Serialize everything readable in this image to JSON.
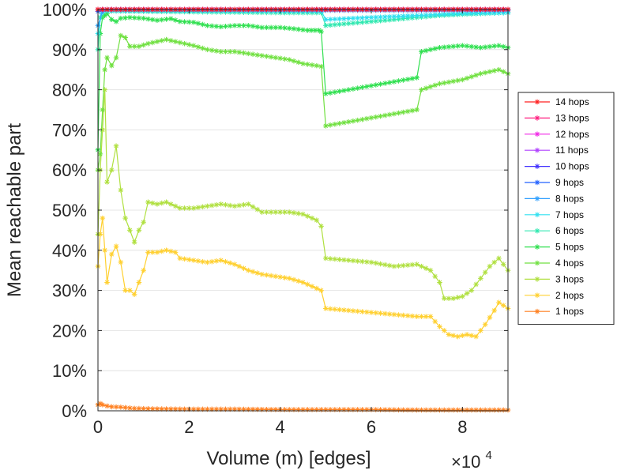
{
  "chart_data": {
    "type": "line",
    "xlabel": "Volume (m) [edges]",
    "ylabel": "Mean reachable part",
    "x_multiplier_label": "×10",
    "x_multiplier_exponent": "4",
    "xlim": [
      0,
      90000
    ],
    "ylim": [
      0,
      100
    ],
    "xticks": [
      0,
      20000,
      40000,
      60000,
      80000
    ],
    "xtick_labels": [
      "0",
      "2",
      "4",
      "6",
      "8"
    ],
    "yticks": [
      0,
      10,
      20,
      30,
      40,
      50,
      60,
      70,
      80,
      90,
      100
    ],
    "ytick_labels": [
      "0%",
      "10%",
      "20%",
      "30%",
      "40%",
      "50%",
      "60%",
      "70%",
      "80%",
      "90%",
      "100%"
    ],
    "grid": "horizontal",
    "legend_position": "right",
    "marker": "asterisk",
    "series": [
      {
        "name": "14 hops",
        "color": "#ff2020",
        "x": [
          0,
          2000,
          5000,
          50000,
          90000
        ],
        "y": [
          100,
          100,
          100,
          100,
          100
        ]
      },
      {
        "name": "13 hops",
        "color": "#ff2080",
        "x": [
          0,
          2000,
          5000,
          50000,
          90000
        ],
        "y": [
          100,
          100,
          100,
          100,
          100
        ]
      },
      {
        "name": "12 hops",
        "color": "#f028e6",
        "x": [
          0,
          2000,
          5000,
          50000,
          90000
        ],
        "y": [
          100,
          100,
          100,
          100,
          100
        ]
      },
      {
        "name": "11 hops",
        "color": "#b040ff",
        "x": [
          0,
          2000,
          5000,
          50000,
          90000
        ],
        "y": [
          100,
          100,
          100,
          100,
          100
        ]
      },
      {
        "name": "10 hops",
        "color": "#4030ff",
        "x": [
          0,
          2000,
          5000,
          50000,
          90000
        ],
        "y": [
          100,
          100,
          100,
          100,
          100
        ]
      },
      {
        "name": "9 hops",
        "color": "#2060ff",
        "x": [
          0,
          1000,
          2000,
          50000,
          90000
        ],
        "y": [
          99.5,
          100,
          100,
          100,
          100
        ]
      },
      {
        "name": "8 hops",
        "color": "#30a0ff",
        "x": [
          0,
          1000,
          2000,
          50000,
          90000
        ],
        "y": [
          96,
          99.5,
          100,
          99.8,
          99.8
        ]
      },
      {
        "name": "7 hops",
        "color": "#30e0f0",
        "x": [
          0,
          800,
          2000,
          49000,
          50000,
          60000,
          70000,
          80000,
          90000
        ],
        "y": [
          94,
          99,
          99.7,
          99.6,
          97.5,
          98,
          98.5,
          99,
          99.2
        ]
      },
      {
        "name": "6 hops",
        "color": "#30e8b0",
        "x": [
          0,
          500,
          1000,
          2000,
          10000,
          20000,
          30000,
          40000,
          49000,
          50000,
          55000,
          60000,
          65000,
          70000,
          75000,
          80000,
          85000,
          90000
        ],
        "y": [
          90,
          98,
          99.5,
          99.6,
          99.5,
          99.4,
          99.3,
          99.2,
          99.2,
          96,
          96.5,
          97,
          97.5,
          98,
          98.5,
          98.8,
          99,
          99.2
        ]
      },
      {
        "name": "5 hops",
        "color": "#30e050",
        "x": [
          0,
          500,
          1000,
          1500,
          2000,
          3000,
          4000,
          5000,
          7000,
          10000,
          13000,
          16000,
          18000,
          21000,
          24000,
          27000,
          30000,
          33000,
          36000,
          40000,
          43000,
          46000,
          48500,
          49000,
          50000,
          55000,
          60000,
          65000,
          70000,
          71000,
          75000,
          80000,
          84000,
          88000,
          90000
        ],
        "y": [
          65,
          94,
          98,
          98.5,
          99,
          97.5,
          97,
          97.8,
          98,
          97.8,
          97.3,
          97.7,
          97,
          96.8,
          96,
          95.7,
          96,
          96,
          95.5,
          95.5,
          95.2,
          94.8,
          94.8,
          94.5,
          79,
          80,
          81,
          82,
          83,
          89.5,
          90.5,
          91,
          90.5,
          91,
          90.5
        ]
      },
      {
        "name": "4 hops",
        "color": "#70e040",
        "x": [
          0,
          500,
          1000,
          1500,
          2000,
          3000,
          4000,
          5000,
          6000,
          7000,
          9000,
          11000,
          13000,
          15000,
          17000,
          19000,
          21000,
          24000,
          27000,
          30000,
          33000,
          36000,
          39000,
          42000,
          45000,
          48000,
          49000,
          50000,
          55000,
          60000,
          65000,
          70000,
          71000,
          75000,
          80000,
          84000,
          86000,
          88000,
          90000
        ],
        "y": [
          60,
          64,
          75,
          85,
          88,
          86,
          88,
          93.5,
          93,
          90.8,
          90.8,
          91.5,
          92,
          92.5,
          92,
          91.5,
          91,
          90,
          89.5,
          89.5,
          89,
          88.5,
          88,
          87.5,
          86.5,
          86,
          85.8,
          71,
          72,
          73,
          74,
          75,
          80,
          81.5,
          82.5,
          84,
          84.5,
          85,
          84
        ]
      },
      {
        "name": "3 hops",
        "color": "#b0e040",
        "x": [
          0,
          500,
          1000,
          1500,
          2000,
          3000,
          4000,
          5000,
          6000,
          7000,
          8000,
          9000,
          10000,
          11000,
          13000,
          15000,
          18000,
          21000,
          24000,
          27000,
          30000,
          33000,
          36000,
          39000,
          42000,
          45000,
          48000,
          49000,
          50000,
          55000,
          60000,
          65000,
          70000,
          73000,
          75000,
          76000,
          78000,
          80000,
          82000,
          84000,
          86000,
          88000,
          90000
        ],
        "y": [
          44,
          60,
          70,
          80,
          57,
          60,
          66,
          55,
          48,
          45,
          42,
          45,
          47,
          52,
          51.5,
          52,
          50.5,
          50.5,
          51,
          51.5,
          51,
          51.5,
          49.5,
          49.5,
          49.5,
          49,
          47.5,
          46,
          38,
          37.5,
          37,
          36,
          36.5,
          35,
          32,
          28,
          28,
          28.5,
          30,
          33,
          36,
          38,
          35
        ]
      },
      {
        "name": "2 hops",
        "color": "#ffd030",
        "x": [
          0,
          500,
          1000,
          1500,
          2000,
          3000,
          4000,
          5000,
          6000,
          7000,
          8000,
          9000,
          10000,
          11000,
          13000,
          15000,
          17000,
          18000,
          21000,
          24000,
          27000,
          30000,
          33000,
          36000,
          39000,
          42000,
          45000,
          48000,
          49000,
          50000,
          55000,
          60000,
          65000,
          70000,
          73000,
          75000,
          77000,
          79000,
          81000,
          83000,
          85000,
          87000,
          88000,
          90000
        ],
        "y": [
          36,
          44,
          48,
          40,
          32,
          39,
          41,
          37,
          30,
          30,
          29,
          32,
          35,
          39.5,
          39.5,
          40,
          39.5,
          38,
          37.5,
          37,
          37.5,
          36.5,
          35,
          34,
          33.5,
          33,
          32,
          30.5,
          30,
          25.5,
          25,
          24.5,
          24,
          23.5,
          23.5,
          21,
          19,
          18.5,
          19,
          18.5,
          21.5,
          25,
          27,
          25.5
        ]
      },
      {
        "name": "1 hops",
        "color": "#ff8020",
        "x": [
          0,
          500,
          1000,
          2000,
          3000,
          5000,
          8000,
          12000,
          20000,
          30000,
          40000,
          50000,
          60000,
          70000,
          80000,
          90000
        ],
        "y": [
          1.5,
          1.8,
          1.5,
          1.2,
          1.0,
          0.9,
          0.6,
          0.5,
          0.4,
          0.4,
          0.3,
          0.3,
          0.3,
          0.2,
          0.2,
          0.2
        ]
      }
    ]
  }
}
